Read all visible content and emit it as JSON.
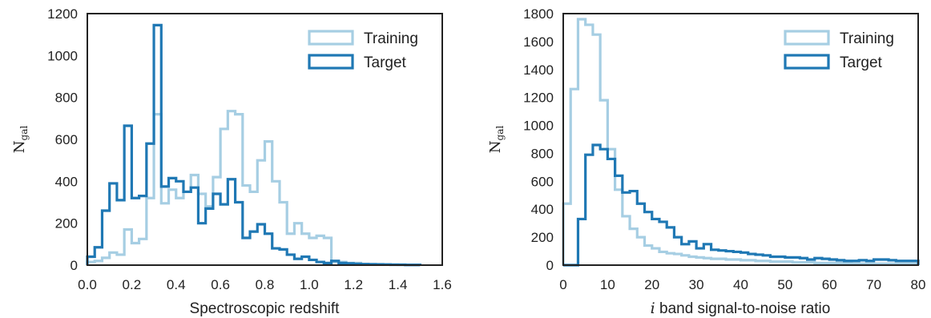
{
  "chart_data": [
    {
      "type": "histogram",
      "xlabel": "Spectroscopic redshift",
      "ylabel_main": "N",
      "ylabel_sub": "gal",
      "xlim": [
        0,
        1.6
      ],
      "ylim": [
        0,
        1200
      ],
      "xticks": [
        "0.0",
        "0.2",
        "0.4",
        "0.6",
        "0.8",
        "1.0",
        "1.2",
        "1.4",
        "1.6"
      ],
      "yticks": [
        "0",
        "200",
        "400",
        "600",
        "800",
        "1000",
        "1200"
      ],
      "grid": false,
      "legend": {
        "position": "top-right"
      },
      "series": [
        {
          "name": "Training",
          "color": "#a6cee3",
          "bins": [
            0.0,
            0.0333,
            0.0667,
            0.1,
            0.1333,
            0.1667,
            0.2,
            0.2333,
            0.2667,
            0.3,
            0.3333,
            0.3667,
            0.4,
            0.4333,
            0.4667,
            0.5,
            0.5333,
            0.5667,
            0.6,
            0.6333,
            0.6667,
            0.7,
            0.7333,
            0.7667,
            0.8,
            0.8333,
            0.8667,
            0.9,
            0.9333,
            0.9667,
            1.0,
            1.0333,
            1.0667,
            1.1,
            1.1333,
            1.1667,
            1.2,
            1.2333,
            1.2667,
            1.3,
            1.3333,
            1.3667,
            1.4,
            1.4333,
            1.4667,
            1.5
          ],
          "counts": [
            15,
            20,
            35,
            60,
            50,
            170,
            105,
            125,
            320,
            720,
            295,
            360,
            320,
            350,
            430,
            340,
            280,
            420,
            650,
            735,
            720,
            380,
            350,
            500,
            590,
            400,
            300,
            150,
            200,
            150,
            130,
            140,
            130,
            15,
            15,
            10,
            10,
            5,
            5,
            5,
            3,
            3,
            2,
            2,
            2
          ]
        },
        {
          "name": "Target",
          "color": "#1f78b4",
          "bins": [
            0.0,
            0.0333,
            0.0667,
            0.1,
            0.1333,
            0.1667,
            0.2,
            0.2333,
            0.2667,
            0.3,
            0.3333,
            0.3667,
            0.4,
            0.4333,
            0.4667,
            0.5,
            0.5333,
            0.5667,
            0.6,
            0.6333,
            0.6667,
            0.7,
            0.7333,
            0.7667,
            0.8,
            0.8333,
            0.8667,
            0.9,
            0.9333,
            0.9667,
            1.0,
            1.0333,
            1.0667,
            1.1,
            1.1333,
            1.1667,
            1.2,
            1.2333,
            1.2667,
            1.3,
            1.3333,
            1.3667,
            1.4,
            1.4333,
            1.4667,
            1.5
          ],
          "counts": [
            40,
            85,
            260,
            390,
            310,
            665,
            320,
            330,
            580,
            1145,
            375,
            415,
            400,
            350,
            370,
            200,
            270,
            340,
            290,
            410,
            300,
            130,
            160,
            195,
            150,
            80,
            75,
            50,
            30,
            40,
            25,
            15,
            10,
            20,
            10,
            8,
            6,
            5,
            4,
            3,
            3,
            2,
            2,
            1,
            1
          ]
        }
      ]
    },
    {
      "type": "histogram",
      "xlabel_italic": "i",
      "xlabel": " band signal-to-noise ratio",
      "ylabel_main": "N",
      "ylabel_sub": "gal",
      "xlim": [
        0,
        80
      ],
      "ylim": [
        0,
        1800
      ],
      "xticks": [
        "0",
        "10",
        "20",
        "30",
        "40",
        "50",
        "60",
        "70",
        "80"
      ],
      "yticks": [
        "0",
        "200",
        "400",
        "600",
        "800",
        "1000",
        "1200",
        "1400",
        "1600",
        "1800"
      ],
      "grid": false,
      "legend": {
        "position": "top-right"
      },
      "series": [
        {
          "name": "Training",
          "color": "#a6cee3",
          "bins": [
            0,
            1.6667,
            3.3333,
            5,
            6.6667,
            8.3333,
            10,
            11.6667,
            13.3333,
            15,
            16.6667,
            18.3333,
            20,
            21.6667,
            23.3333,
            25,
            26.6667,
            28.3333,
            30,
            31.6667,
            33.3333,
            35,
            36.6667,
            38.3333,
            40,
            41.6667,
            43.3333,
            45,
            46.6667,
            48.3333,
            50,
            51.6667,
            53.3333,
            55,
            56.6667,
            58.3333,
            60,
            61.6667,
            63.3333,
            65,
            66.6667,
            68.3333,
            70,
            71.6667,
            73.3333,
            75,
            76.6667,
            78.3333,
            80
          ],
          "counts": [
            440,
            1260,
            1760,
            1720,
            1650,
            1180,
            830,
            540,
            350,
            260,
            200,
            140,
            120,
            95,
            85,
            80,
            70,
            60,
            55,
            50,
            45,
            45,
            40,
            40,
            35,
            35,
            30,
            30,
            25,
            25,
            25,
            20,
            20,
            20,
            15,
            15,
            15,
            15,
            15,
            10,
            10,
            10,
            10,
            10,
            10,
            10,
            10,
            10
          ]
        },
        {
          "name": "Target",
          "color": "#1f78b4",
          "bins": [
            0,
            1.6667,
            3.3333,
            5,
            6.6667,
            8.3333,
            10,
            11.6667,
            13.3333,
            15,
            16.6667,
            18.3333,
            20,
            21.6667,
            23.3333,
            25,
            26.6667,
            28.3333,
            30,
            31.6667,
            33.3333,
            35,
            36.6667,
            38.3333,
            40,
            41.6667,
            43.3333,
            45,
            46.6667,
            48.3333,
            50,
            51.6667,
            53.3333,
            55,
            56.6667,
            58.3333,
            60,
            61.6667,
            63.3333,
            65,
            66.6667,
            68.3333,
            70,
            71.6667,
            73.3333,
            75,
            76.6667,
            78.3333,
            80
          ],
          "counts": [
            0,
            0,
            330,
            790,
            860,
            830,
            760,
            640,
            520,
            530,
            440,
            380,
            330,
            310,
            270,
            200,
            150,
            170,
            120,
            150,
            110,
            105,
            100,
            95,
            90,
            80,
            75,
            70,
            60,
            60,
            55,
            55,
            50,
            40,
            50,
            45,
            40,
            35,
            30,
            30,
            35,
            30,
            40,
            40,
            35,
            30,
            30,
            30
          ]
        }
      ]
    }
  ]
}
